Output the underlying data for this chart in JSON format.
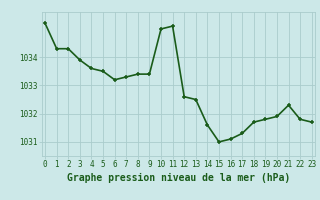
{
  "x": [
    0,
    1,
    2,
    3,
    4,
    5,
    6,
    7,
    8,
    9,
    10,
    11,
    12,
    13,
    14,
    15,
    16,
    17,
    18,
    19,
    20,
    21,
    22,
    23
  ],
  "y": [
    1035.2,
    1034.3,
    1034.3,
    1033.9,
    1033.6,
    1033.5,
    1033.2,
    1033.3,
    1033.4,
    1033.4,
    1035.0,
    1035.1,
    1032.6,
    1032.5,
    1031.6,
    1031.0,
    1031.1,
    1031.3,
    1031.7,
    1031.8,
    1031.9,
    1032.3,
    1031.8,
    1031.7
  ],
  "line_color": "#1a5c1a",
  "marker_color": "#1a5c1a",
  "bg_color": "#cce8e8",
  "grid_color": "#aacccc",
  "axis_label_color": "#1a5c1a",
  "tick_label_color": "#1a5c1a",
  "xlabel": "Graphe pression niveau de la mer (hPa)",
  "ylim": [
    1030.5,
    1035.6
  ],
  "yticks": [
    1031,
    1032,
    1033,
    1034
  ],
  "xticks": [
    0,
    1,
    2,
    3,
    4,
    5,
    6,
    7,
    8,
    9,
    10,
    11,
    12,
    13,
    14,
    15,
    16,
    17,
    18,
    19,
    20,
    21,
    22,
    23
  ],
  "tick_fontsize": 5.5,
  "xlabel_fontsize": 7.0,
  "linewidth": 1.2,
  "markersize": 3.5
}
